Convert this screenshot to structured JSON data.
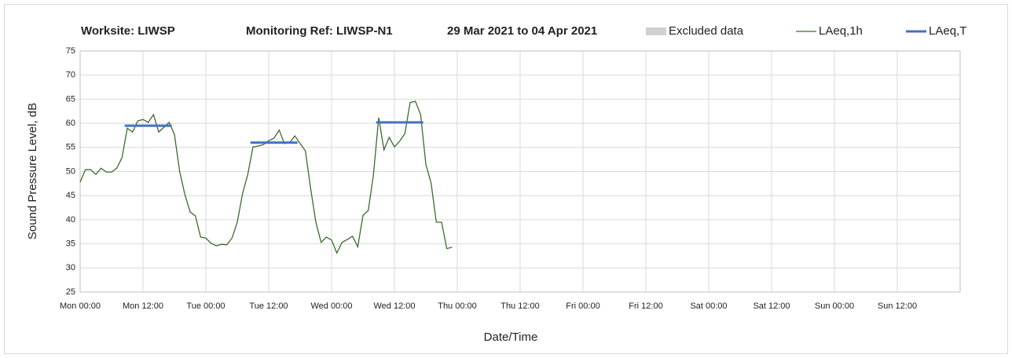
{
  "chart_data": {
    "type": "line",
    "title": "Worksite: LIWSP",
    "subtitle": "Monitoring Ref: LIWSP-N1",
    "period": "29 Mar 2021 to 04 Apr 2021",
    "ylabel": "Sound Pressure Level, dB",
    "xlabel": "Date/Time",
    "xlim": [
      0,
      168
    ],
    "xticks": [
      {
        "value": 0,
        "label": "Mon 00:00"
      },
      {
        "value": 12,
        "label": "Mon 12:00"
      },
      {
        "value": 24,
        "label": "Tue 00:00"
      },
      {
        "value": 36,
        "label": "Tue 12:00"
      },
      {
        "value": 48,
        "label": "Wed 00:00"
      },
      {
        "value": 60,
        "label": "Wed 12:00"
      },
      {
        "value": 72,
        "label": "Thu 00:00"
      },
      {
        "value": 84,
        "label": "Thu 12:00"
      },
      {
        "value": 96,
        "label": "Fri 00:00"
      },
      {
        "value": 108,
        "label": "Fri 12:00"
      },
      {
        "value": 120,
        "label": "Sat 00:00"
      },
      {
        "value": 132,
        "label": "Sat 12:00"
      },
      {
        "value": 144,
        "label": "Sun 00:00"
      },
      {
        "value": 156,
        "label": "Sun 12:00"
      }
    ],
    "ylim": [
      25,
      75
    ],
    "yticks": [
      25,
      30,
      35,
      40,
      45,
      50,
      55,
      60,
      65,
      70,
      75
    ],
    "grid": true,
    "series": [
      {
        "name": "Excluded data",
        "color": "#d0d0d0",
        "x": [],
        "values": []
      },
      {
        "name": "LAeq,1h",
        "color": "#3d6b2a",
        "x": [
          0,
          1,
          2,
          3,
          4,
          5,
          6,
          7,
          8,
          9,
          10,
          11,
          12,
          13,
          14,
          15,
          16,
          17,
          18,
          19,
          20,
          21,
          22,
          23,
          24,
          25,
          26,
          27,
          28,
          29,
          30,
          31,
          32,
          33,
          34,
          35,
          36,
          37,
          38,
          39,
          40,
          41,
          42,
          43,
          44,
          45,
          46,
          47,
          48,
          49,
          50,
          51,
          52,
          53,
          54,
          55,
          56,
          57,
          58,
          59,
          60,
          61,
          62,
          63,
          64,
          65,
          66,
          67,
          68,
          69,
          70,
          71
        ],
        "values": [
          47.8,
          50.4,
          50.4,
          49.4,
          50.7,
          49.9,
          49.9,
          50.7,
          52.9,
          59,
          58.2,
          60.5,
          60.8,
          60.2,
          61.8,
          58.2,
          59.2,
          60.2,
          57.7,
          50,
          45.2,
          41.6,
          40.8,
          36.4,
          36.2,
          35.1,
          34.6,
          34.9,
          34.8,
          36.2,
          39.5,
          45.4,
          49.4,
          55.1,
          55.3,
          55.6,
          56.4,
          56.9,
          58.6,
          55.8,
          56,
          57.4,
          55.8,
          54.3,
          46.5,
          39.5,
          35.3,
          36.4,
          35.8,
          33.1,
          35.3,
          35.9,
          36.6,
          34.4,
          40.9,
          41.9,
          49.4,
          61.2,
          54.5,
          57.1,
          55.1,
          56.3,
          57.9,
          64.3,
          64.6,
          61.8,
          51.5,
          47.6,
          39.5,
          39.5,
          34,
          34.3
        ]
      },
      {
        "name": "LAeq,T",
        "color": "#4472c4",
        "x": [
          8.5,
          17.5,
          25,
          32.5,
          41.5,
          49,
          56.5,
          65.5
        ],
        "values": [
          59.5,
          59.5,
          null,
          56,
          56,
          null,
          60.2,
          60.2
        ]
      }
    ]
  }
}
